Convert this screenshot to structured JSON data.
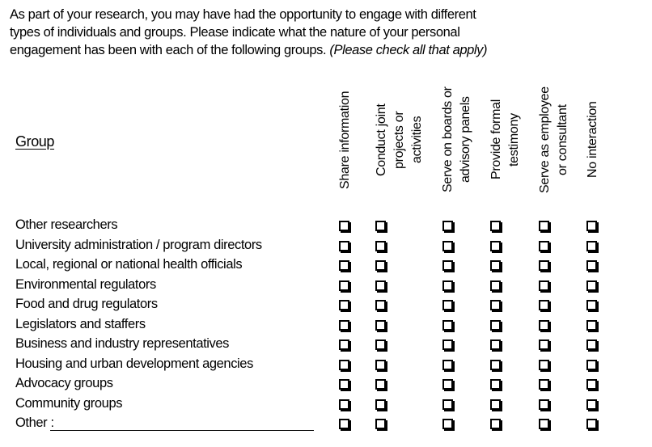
{
  "intro": {
    "line1": "As part of your research, you may have had the opportunity to engage with different",
    "line2": "types of individuals and groups. Please indicate what the nature of your personal",
    "line3": "engagement has been with each of the following groups. ",
    "italic_note": "(Please check all that apply)"
  },
  "table": {
    "group_header": "Group",
    "columns": [
      {
        "label": "Share information"
      },
      {
        "label": "Conduct joint\nprojects or\nactivities"
      },
      {
        "label": "Serve on boards or\nadvisory panels"
      },
      {
        "label": "Provide formal\ntestimony"
      },
      {
        "label": "Serve as employee\nor consultant"
      },
      {
        "label": "No interaction"
      }
    ],
    "rows": [
      {
        "label": "Other researchers"
      },
      {
        "label": "University administration / program directors"
      },
      {
        "label": "Local, regional or national health officials"
      },
      {
        "label": "Environmental regulators"
      },
      {
        "label": "Food and drug regulators"
      },
      {
        "label": "Legislators and staffers"
      },
      {
        "label": "Business and industry representatives"
      },
      {
        "label": "Housing and urban development agencies"
      },
      {
        "label": "Advocacy groups"
      },
      {
        "label": "Community groups"
      },
      {
        "label": "Other :"
      }
    ],
    "checkbox_glyph": "shadowed-square-unchecked",
    "all_checkboxes_checked": false
  },
  "colors": {
    "text": "#000000",
    "background": "#ffffff"
  }
}
